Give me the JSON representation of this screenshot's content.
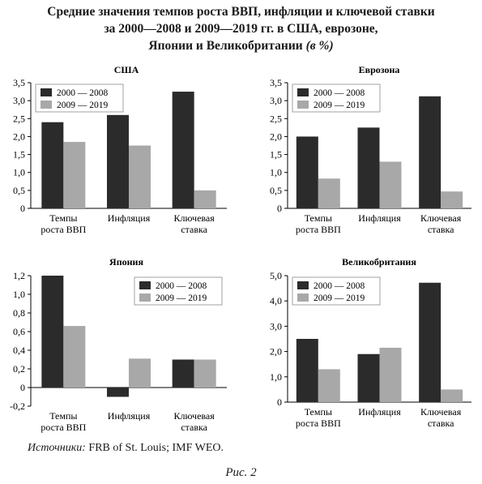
{
  "title": {
    "line1": "Средние значения темпов роста ВВП, инфляции и ключевой ставки",
    "line2": "за 2000—2008 и 2009—2019 гг. в США, еврозоне,",
    "line3": "Японии и Великобритании",
    "unit": "(в %)"
  },
  "source": {
    "label": "Источники:",
    "text": "FRB of St. Louis; IMF WEO."
  },
  "figure_caption": "Рис. 2",
  "colors": {
    "series_2000_2008": "#2b2b2b",
    "series_2009_2019": "#a8a8a8",
    "axis": "#000000"
  },
  "chart_data": [
    {
      "type": "bar",
      "title": "США",
      "categories": [
        [
          "Темпы",
          "роста ВВП"
        ],
        [
          "Инфляция"
        ],
        [
          "Ключевая",
          "ставка"
        ]
      ],
      "series": [
        {
          "name": "2000 — 2008",
          "values": [
            2.4,
            2.6,
            3.25
          ]
        },
        {
          "name": "2009 — 2019",
          "values": [
            1.85,
            1.75,
            0.5
          ]
        }
      ],
      "ylim": [
        0,
        3.5
      ],
      "yticks": [
        "0",
        "0,5",
        "1,0",
        "1,5",
        "2,0",
        "2,5",
        "3,0",
        "3,5"
      ],
      "legend": "top-left"
    },
    {
      "type": "bar",
      "title": "Еврозона",
      "categories": [
        [
          "Темпы",
          "роста ВВП"
        ],
        [
          "Инфляция"
        ],
        [
          "Ключевая",
          "ставка"
        ]
      ],
      "series": [
        {
          "name": "2000 — 2008",
          "values": [
            2.0,
            2.25,
            3.12
          ]
        },
        {
          "name": "2009 — 2019",
          "values": [
            0.83,
            1.3,
            0.47
          ]
        }
      ],
      "ylim": [
        0,
        3.5
      ],
      "yticks": [
        "0",
        "0,5",
        "1,0",
        "1,5",
        "2,0",
        "2,5",
        "3,0",
        "3,5"
      ],
      "legend": "top-left"
    },
    {
      "type": "bar",
      "title": "Япония",
      "categories": [
        [
          "Темпы",
          "роста ВВП"
        ],
        [
          "Инфляция"
        ],
        [
          "Ключевая",
          "ставка"
        ]
      ],
      "series": [
        {
          "name": "2000 — 2008",
          "values": [
            1.2,
            -0.1,
            0.3
          ]
        },
        {
          "name": "2009 — 2019",
          "values": [
            0.66,
            0.31,
            0.3
          ]
        }
      ],
      "ylim": [
        -0.2,
        1.2
      ],
      "yticks": [
        "-0,2",
        "0",
        "0,2",
        "0,4",
        "0,6",
        "0,8",
        "1,0",
        "1,2"
      ],
      "legend": "top-right"
    },
    {
      "type": "bar",
      "title": "Великобритания",
      "categories": [
        [
          "Темпы",
          "роста ВВП"
        ],
        [
          "Инфляция"
        ],
        [
          "Ключевая",
          "ставка"
        ]
      ],
      "series": [
        {
          "name": "2000 — 2008",
          "values": [
            2.5,
            1.9,
            4.72
          ]
        },
        {
          "name": "2009 — 2019",
          "values": [
            1.3,
            2.15,
            0.5
          ]
        }
      ],
      "ylim": [
        0,
        5.0
      ],
      "yticks": [
        "0",
        "1,0",
        "2,0",
        "3,0",
        "4,0",
        "5,0"
      ],
      "legend": "top-left"
    }
  ]
}
